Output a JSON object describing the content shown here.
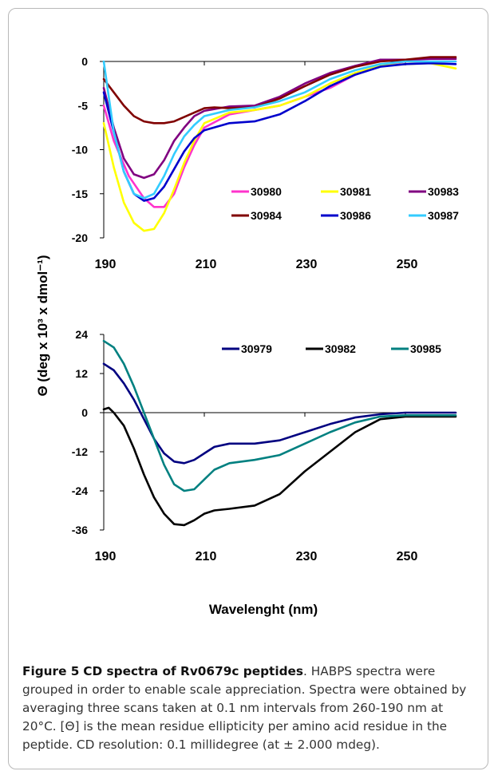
{
  "figure": {
    "y_axis_title": "Θ (deg x 10³ x dmol⁻¹)",
    "x_axis_title": "Wavelenght (nm)"
  },
  "caption": {
    "label": "Figure 5",
    "title": "CD spectra of Rv0679c peptides",
    "text": ". HABPS spectra were grouped in order to enable scale appreciation. Spectra were obtained by averaging three scans taken at 0.1 nm intervals from 260-190 nm at 20°C. [Θ] is the mean residue ellipticity per amino acid residue in the peptide. CD resolution: 0.1 millidegree (at ± 2.000 mdeg)."
  },
  "chart_data": [
    {
      "type": "line",
      "xlim": [
        190,
        260
      ],
      "ylim": [
        -20,
        2
      ],
      "xticks": [
        190,
        210,
        230,
        250
      ],
      "yticks": [
        0,
        -5,
        -10,
        -15,
        -20
      ],
      "grid": false,
      "legend_placement": "bottom-right",
      "series": [
        {
          "name": "30980",
          "color": "#ff33cc",
          "x": [
            190,
            192,
            195,
            198,
            200,
            202,
            204,
            206,
            208,
            210,
            215,
            220,
            225,
            230,
            235,
            240,
            245,
            250,
            255,
            260
          ],
          "y": [
            -5,
            -9,
            -13,
            -15.5,
            -16.5,
            -16.5,
            -15,
            -12,
            -9.5,
            -7.5,
            -6,
            -5.5,
            -5,
            -4,
            -3,
            -1.5,
            -0.5,
            0,
            0,
            0
          ]
        },
        {
          "name": "30981",
          "color": "#ffff00",
          "x": [
            190,
            192,
            194,
            196,
            198,
            200,
            202,
            204,
            206,
            208,
            210,
            215,
            220,
            225,
            230,
            235,
            240,
            245,
            250,
            255,
            260
          ],
          "y": [
            -7,
            -12,
            -16,
            -18.3,
            -19.2,
            -19,
            -17.2,
            -14.5,
            -11.5,
            -9,
            -7,
            -5.8,
            -5.5,
            -5,
            -4,
            -2.5,
            -1.3,
            -0.5,
            -0.3,
            -0.2,
            -0.8
          ]
        },
        {
          "name": "30983",
          "color": "#800080",
          "x": [
            190,
            192,
            194,
            196,
            198,
            200,
            202,
            204,
            206,
            208,
            210,
            215,
            220,
            225,
            230,
            235,
            240,
            245,
            250,
            255,
            260
          ],
          "y": [
            -3,
            -7.5,
            -11,
            -12.8,
            -13.2,
            -12.8,
            -11.2,
            -9,
            -7.5,
            -6.2,
            -5.6,
            -5.1,
            -5,
            -4,
            -2.5,
            -1.3,
            -0.5,
            0.2,
            0.2,
            0.3,
            0.3
          ]
        },
        {
          "name": "30984",
          "color": "#800000",
          "x": [
            190,
            192,
            194,
            196,
            198,
            200,
            202,
            204,
            206,
            208,
            210,
            212,
            215,
            220,
            225,
            230,
            235,
            240,
            245,
            250,
            255,
            260
          ],
          "y": [
            -2,
            -3.5,
            -5,
            -6.2,
            -6.8,
            -7,
            -7,
            -6.8,
            -6.3,
            -5.8,
            -5.3,
            -5.2,
            -5.3,
            -5.2,
            -4.2,
            -2.8,
            -1.5,
            -0.6,
            0,
            0.2,
            0.5,
            0.5
          ]
        },
        {
          "name": "30986",
          "color": "#0000cc",
          "x": [
            190,
            192,
            194,
            196,
            198,
            200,
            202,
            204,
            206,
            208,
            210,
            215,
            220,
            225,
            230,
            235,
            240,
            245,
            250,
            255,
            260
          ],
          "y": [
            -3.5,
            -8,
            -12.5,
            -15,
            -15.8,
            -15.5,
            -14.2,
            -12.2,
            -10.2,
            -8.7,
            -7.8,
            -7,
            -6.8,
            -6,
            -4.5,
            -2.8,
            -1.5,
            -0.6,
            -0.3,
            -0.2,
            -0.3
          ]
        },
        {
          "name": "30987",
          "color": "#33ccff",
          "x": [
            190,
            191,
            192,
            194,
            196,
            198,
            200,
            202,
            204,
            206,
            208,
            210,
            215,
            220,
            225,
            230,
            235,
            240,
            245,
            250,
            255,
            260
          ],
          "y": [
            0,
            -4,
            -8,
            -12.5,
            -15,
            -15.5,
            -15,
            -13,
            -10.5,
            -8.5,
            -7.2,
            -6.2,
            -5.5,
            -5.2,
            -4.5,
            -3.5,
            -2,
            -1,
            -0.3,
            0,
            0,
            0
          ]
        }
      ]
    },
    {
      "type": "line",
      "xlim": [
        190,
        260
      ],
      "ylim": [
        -36,
        24
      ],
      "xticks": [
        190,
        210,
        230,
        250
      ],
      "yticks": [
        24,
        12,
        0,
        -12,
        -24,
        -36
      ],
      "grid": false,
      "legend_placement": "top-right",
      "series": [
        {
          "name": "30979",
          "color": "#000080",
          "x": [
            190,
            192,
            194,
            196,
            198,
            200,
            202,
            204,
            206,
            208,
            210,
            212,
            215,
            220,
            225,
            230,
            235,
            240,
            245,
            250,
            255,
            260
          ],
          "y": [
            15,
            13,
            9,
            4,
            -2,
            -8,
            -12.5,
            -15,
            -15.5,
            -14.5,
            -12.5,
            -10.5,
            -9.5,
            -9.5,
            -8.5,
            -6,
            -3.5,
            -1.5,
            -0.5,
            0,
            0,
            0
          ]
        },
        {
          "name": "30982",
          "color": "#000000",
          "x": [
            190,
            191,
            192,
            194,
            196,
            198,
            200,
            202,
            204,
            206,
            208,
            210,
            212,
            215,
            220,
            225,
            230,
            235,
            240,
            245,
            250,
            255,
            260
          ],
          "y": [
            1,
            1.5,
            0,
            -4,
            -11,
            -19,
            -26,
            -31,
            -34.2,
            -34.5,
            -33,
            -31,
            -30,
            -29.5,
            -28.5,
            -25,
            -18,
            -12,
            -6,
            -2,
            -1.2,
            -1.2,
            -1.2
          ]
        },
        {
          "name": "30985",
          "color": "#008080",
          "x": [
            190,
            192,
            194,
            196,
            198,
            200,
            202,
            204,
            206,
            208,
            210,
            212,
            215,
            220,
            225,
            230,
            235,
            240,
            245,
            250,
            255,
            260
          ],
          "y": [
            22,
            20,
            15,
            8,
            0,
            -8,
            -16,
            -22,
            -24,
            -23.5,
            -20.5,
            -17.5,
            -15.5,
            -14.5,
            -13,
            -9.5,
            -6,
            -3,
            -1.2,
            -0.8,
            -0.8,
            -0.8
          ]
        }
      ]
    }
  ]
}
